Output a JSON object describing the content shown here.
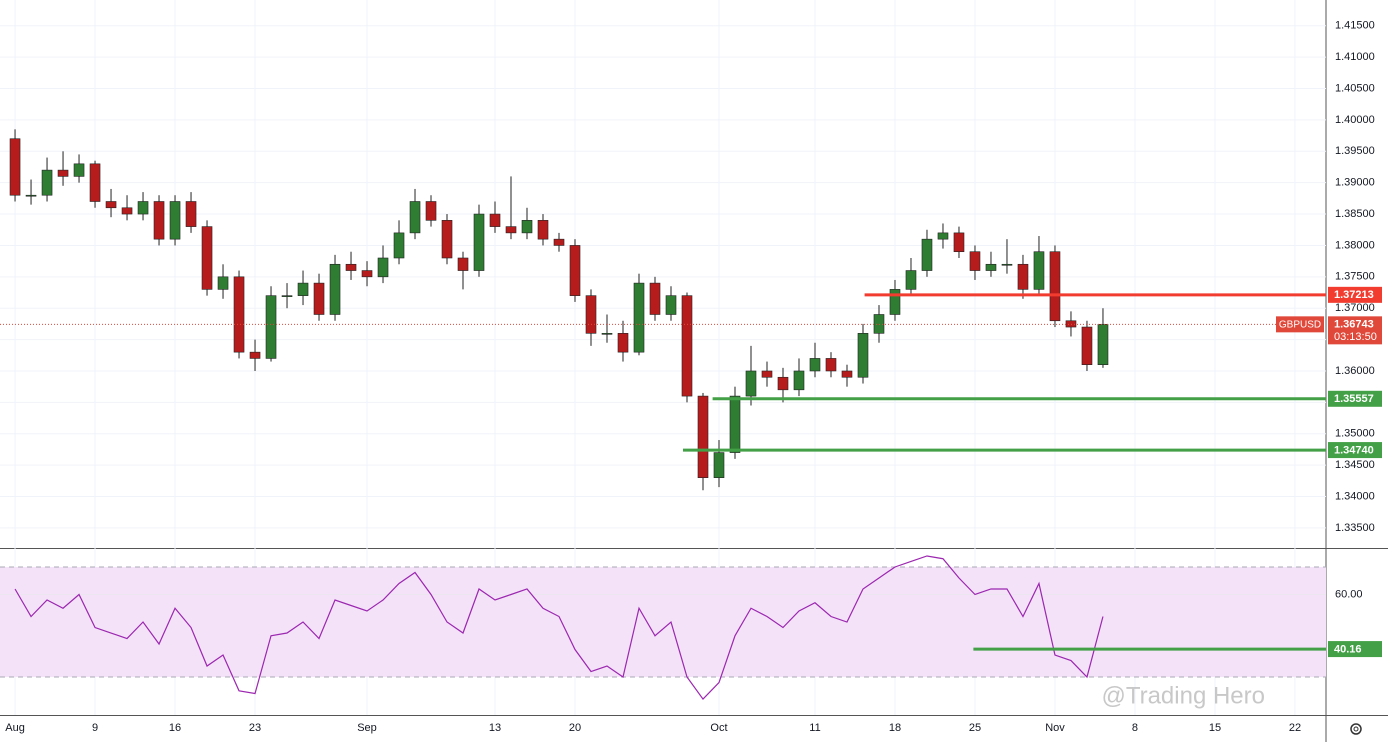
{
  "chart_data": [
    {
      "type": "candlestick",
      "symbol": "GBPUSD",
      "countdown": "03:13:50",
      "last_price": {
        "value": 1.36743,
        "label": "1.36743"
      },
      "last_price_color": "#e0483a",
      "up_color": "#2e7d32",
      "down_color": "#b71c1c",
      "grid": true,
      "open": [
        1.397,
        1.388,
        1.388,
        1.392,
        1.391,
        1.393,
        1.387,
        1.386,
        1.385,
        1.387,
        1.381,
        1.387,
        1.383,
        1.373,
        1.375,
        1.363,
        1.362,
        1.372,
        1.372,
        1.374,
        1.369,
        1.377,
        1.376,
        1.375,
        1.378,
        1.382,
        1.387,
        1.384,
        1.378,
        1.376,
        1.385,
        1.383,
        1.382,
        1.384,
        1.381,
        1.38,
        1.372,
        1.366,
        1.366,
        1.363,
        1.374,
        1.369,
        1.372,
        1.356,
        1.343,
        1.347,
        1.356,
        1.36,
        1.359,
        1.357,
        1.36,
        1.362,
        1.36,
        1.359,
        1.366,
        1.369,
        1.373,
        1.376,
        1.381,
        1.382,
        1.379,
        1.376,
        1.377,
        1.377,
        1.373,
        1.379,
        1.368,
        1.367,
        1.361
      ],
      "high": [
        1.3985,
        1.3905,
        1.394,
        1.395,
        1.3945,
        1.3935,
        1.389,
        1.388,
        1.3885,
        1.388,
        1.388,
        1.3885,
        1.384,
        1.377,
        1.376,
        1.365,
        1.3735,
        1.374,
        1.376,
        1.3755,
        1.3785,
        1.379,
        1.3775,
        1.38,
        1.384,
        1.389,
        1.388,
        1.385,
        1.379,
        1.3865,
        1.387,
        1.391,
        1.386,
        1.385,
        1.382,
        1.381,
        1.373,
        1.369,
        1.368,
        1.3755,
        1.375,
        1.3735,
        1.3725,
        1.3565,
        1.349,
        1.3575,
        1.364,
        1.3615,
        1.3605,
        1.362,
        1.3645,
        1.363,
        1.361,
        1.3675,
        1.3705,
        1.3745,
        1.378,
        1.3825,
        1.3835,
        1.383,
        1.38,
        1.379,
        1.381,
        1.3785,
        1.3815,
        1.38,
        1.3695,
        1.368,
        1.37
      ],
      "low": [
        1.387,
        1.3865,
        1.387,
        1.3895,
        1.39,
        1.386,
        1.3845,
        1.384,
        1.384,
        1.38,
        1.38,
        1.382,
        1.372,
        1.3715,
        1.362,
        1.36,
        1.3615,
        1.37,
        1.3705,
        1.368,
        1.368,
        1.3745,
        1.3735,
        1.374,
        1.377,
        1.381,
        1.383,
        1.377,
        1.373,
        1.375,
        1.382,
        1.381,
        1.381,
        1.38,
        1.379,
        1.371,
        1.364,
        1.3645,
        1.3615,
        1.3625,
        1.368,
        1.368,
        1.355,
        1.341,
        1.3415,
        1.346,
        1.3545,
        1.3575,
        1.355,
        1.356,
        1.359,
        1.359,
        1.3575,
        1.358,
        1.3645,
        1.368,
        1.372,
        1.375,
        1.3795,
        1.378,
        1.3745,
        1.375,
        1.3755,
        1.3715,
        1.372,
        1.367,
        1.3655,
        1.36,
        1.3605
      ],
      "close": [
        1.388,
        1.388,
        1.392,
        1.391,
        1.393,
        1.387,
        1.386,
        1.385,
        1.387,
        1.381,
        1.387,
        1.383,
        1.373,
        1.375,
        1.363,
        1.362,
        1.372,
        1.372,
        1.374,
        1.369,
        1.377,
        1.376,
        1.375,
        1.378,
        1.382,
        1.387,
        1.384,
        1.378,
        1.376,
        1.385,
        1.383,
        1.382,
        1.384,
        1.381,
        1.38,
        1.372,
        1.366,
        1.366,
        1.363,
        1.374,
        1.369,
        1.372,
        1.356,
        1.343,
        1.347,
        1.356,
        1.36,
        1.359,
        1.357,
        1.36,
        1.362,
        1.36,
        1.359,
        1.366,
        1.369,
        1.373,
        1.376,
        1.381,
        1.382,
        1.379,
        1.376,
        1.377,
        1.377,
        1.373,
        1.379,
        1.368,
        1.367,
        1.361,
        1.36743
      ],
      "xlim": [
        -0.94,
        81.94
      ],
      "xticks": [
        {
          "value": 0,
          "label": "Aug"
        },
        {
          "value": 5,
          "label": "9"
        },
        {
          "value": 10,
          "label": "16"
        },
        {
          "value": 15,
          "label": "23"
        },
        {
          "value": 22,
          "label": "Sep"
        },
        {
          "value": 30,
          "label": "13"
        },
        {
          "value": 35,
          "label": "20"
        },
        {
          "value": 44,
          "label": "Oct"
        },
        {
          "value": 50,
          "label": "11"
        },
        {
          "value": 55,
          "label": "18"
        },
        {
          "value": 60,
          "label": "25"
        },
        {
          "value": 65,
          "label": "Nov"
        },
        {
          "value": 70,
          "label": "8"
        },
        {
          "value": 75,
          "label": "15"
        },
        {
          "value": 80,
          "label": "22"
        }
      ],
      "ylim": [
        1.3318,
        1.4191
      ],
      "yticks": [
        {
          "value": 1.335,
          "label": "1.33500"
        },
        {
          "value": 1.34,
          "label": "1.34000"
        },
        {
          "value": 1.345,
          "label": "1.34500"
        },
        {
          "value": 1.35,
          "label": "1.35000"
        },
        {
          "value": 1.355,
          "label": "1.35500"
        },
        {
          "value": 1.36,
          "label": "1.36000"
        },
        {
          "value": 1.365,
          "label": "1.36500"
        },
        {
          "value": 1.37,
          "label": "1.37000"
        },
        {
          "value": 1.375,
          "label": "1.37500"
        },
        {
          "value": 1.38,
          "label": "1.38000"
        },
        {
          "value": 1.385,
          "label": "1.38500"
        },
        {
          "value": 1.39,
          "label": "1.39000"
        },
        {
          "value": 1.395,
          "label": "1.39500"
        },
        {
          "value": 1.4,
          "label": "1.40000"
        },
        {
          "value": 1.405,
          "label": "1.40500"
        },
        {
          "value": 1.41,
          "label": "1.41000"
        },
        {
          "value": 1.415,
          "label": "1.41500"
        }
      ],
      "levels": [
        {
          "value": 1.37213,
          "label": "1.37213",
          "color": "#f23c30",
          "from": 53.1
        },
        {
          "value": 1.35557,
          "label": "1.35557",
          "color": "#43a047",
          "from": 43.6
        },
        {
          "value": 1.3474,
          "label": "1.34740",
          "color": "#43a047",
          "from": 41.75
        }
      ]
    },
    {
      "type": "line",
      "name": "RSI",
      "color": "#9c27b0",
      "band_color": "#f3e2f8",
      "values": [
        62,
        52,
        58,
        55,
        60,
        48,
        46,
        44,
        50,
        42,
        55,
        48,
        34,
        38,
        25,
        24,
        45,
        46,
        50,
        44,
        58,
        56,
        54,
        58,
        64,
        68,
        60,
        50,
        46,
        62,
        58,
        60,
        62,
        55,
        52,
        40,
        32,
        34,
        30,
        55,
        45,
        50,
        30,
        22,
        28,
        45,
        55,
        52,
        48,
        54,
        57,
        52,
        50,
        62,
        66,
        70,
        72,
        74,
        73,
        66,
        60,
        62,
        62,
        52,
        64,
        38,
        36,
        30,
        52
      ],
      "bands": [
        30,
        70
      ],
      "ylim": [
        16.2,
        76.9
      ],
      "yticks": [
        {
          "value": 60,
          "label": "60.00"
        }
      ],
      "levels": [
        {
          "value": 40.16,
          "label": "40.16",
          "color": "#43a047",
          "from": 59.9
        }
      ]
    }
  ],
  "watermark": "@Trading Hero"
}
